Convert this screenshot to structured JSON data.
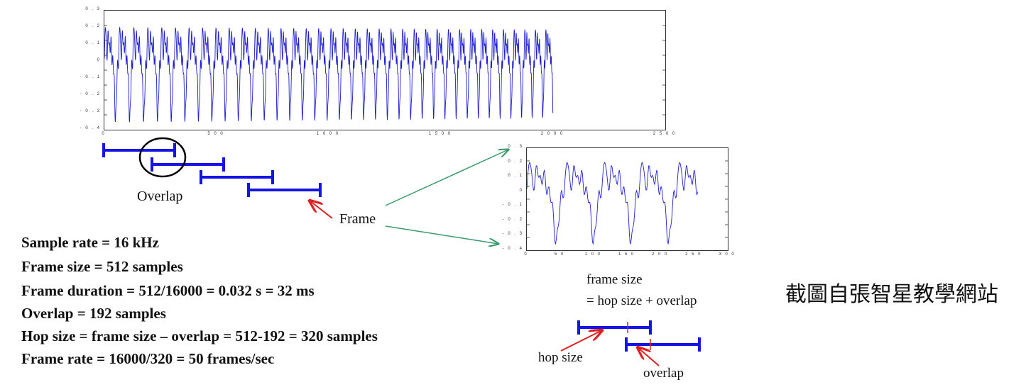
{
  "chart_data": [
    {
      "type": "line",
      "title": "",
      "xlabel": "",
      "ylabel": "",
      "xlim": [
        0,
        2500
      ],
      "ylim": [
        -0.4,
        0.3
      ],
      "x_ticks": [
        "0",
        "5 0 0",
        "1 0 0 0",
        "1 5 0 0",
        "2 0 0 0",
        "2 5 0 0"
      ],
      "y_ticks": [
        "0 . 3",
        "0 . 2",
        "0 . 1",
        "0",
        "- 0 . 1",
        "- 0 . 2",
        "- 0 . 3",
        "- 0 . 4"
      ],
      "series": [
        {
          "color": "#1f1fd0",
          "sample_count": 2000,
          "approx_period_samples": 64,
          "approx_max": 0.25,
          "approx_min": -0.35
        }
      ]
    },
    {
      "type": "line",
      "title": "",
      "xlabel": "",
      "ylabel": "",
      "xlim": [
        0,
        300
      ],
      "ylim": [
        -0.4,
        0.3
      ],
      "x_ticks": [
        "0",
        "5 0",
        "1 0 0",
        "1 5 0",
        "2 0 0",
        "2 5 0",
        "3 0 0"
      ],
      "y_ticks": [
        "0 . 3",
        "0 . 2",
        "0 . 1",
        "0",
        "- 0 . 1",
        "- 0 . 2",
        "- 0 . 3",
        "- 0 . 4"
      ],
      "series": [
        {
          "color": "#1f1fd0",
          "sample_count": 256,
          "approx_period_samples": 56,
          "approx_max": 0.26,
          "approx_min": -0.3
        }
      ]
    }
  ],
  "diagram": {
    "overlap_label": "Overlap",
    "frame_label": "Frame",
    "frame_size_line1": "frame size",
    "frame_size_line2": "= hop size + overlap",
    "hop_size_label": "hop size",
    "overlap_small_label": "overlap",
    "colors": {
      "frame": "#1414e6",
      "pointer": "#e02020",
      "zoom_arrow": "#3a9a6a",
      "waveform": "#1f1fd0"
    }
  },
  "facts": [
    "Sample rate = 16 kHz",
    "Frame size = 512 samples",
    "Frame duration = 512/16000 = 0.032 s = 32 ms",
    "Overlap = 192 samples",
    "Hop size = frame size – overlap = 512-192 = 320 samples",
    "Frame rate = 16000/320 = 50 frames/sec"
  ],
  "credit": "截圖自張智星教學網站"
}
